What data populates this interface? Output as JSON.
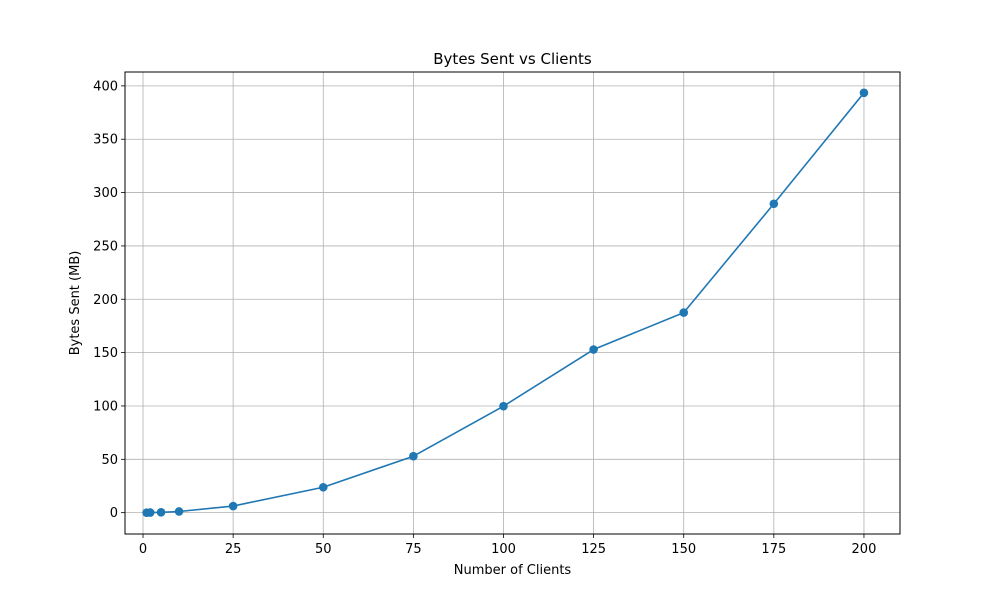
{
  "chart_data": {
    "type": "line",
    "title": "Bytes Sent vs Clients",
    "xlabel": "Number of Clients",
    "ylabel": "Bytes Sent (MB)",
    "xlim": [
      -5,
      210
    ],
    "ylim": [
      -20,
      413
    ],
    "xticks": [
      0,
      25,
      50,
      75,
      100,
      125,
      150,
      175,
      200
    ],
    "yticks": [
      0,
      50,
      100,
      150,
      200,
      250,
      300,
      350,
      400
    ],
    "grid": true,
    "series": [
      {
        "color": "#1f77b4",
        "marker": "circle",
        "points": [
          {
            "x": 1,
            "y": 0.0
          },
          {
            "x": 2,
            "y": 0.1
          },
          {
            "x": 5,
            "y": 0.3
          },
          {
            "x": 10,
            "y": 1.1
          },
          {
            "x": 25,
            "y": 6.2
          },
          {
            "x": 50,
            "y": 23.8
          },
          {
            "x": 75,
            "y": 52.9
          },
          {
            "x": 100,
            "y": 99.8
          },
          {
            "x": 125,
            "y": 152.9
          },
          {
            "x": 150,
            "y": 187.5
          },
          {
            "x": 175,
            "y": 289.5
          },
          {
            "x": 200,
            "y": 393.5
          }
        ]
      }
    ]
  }
}
